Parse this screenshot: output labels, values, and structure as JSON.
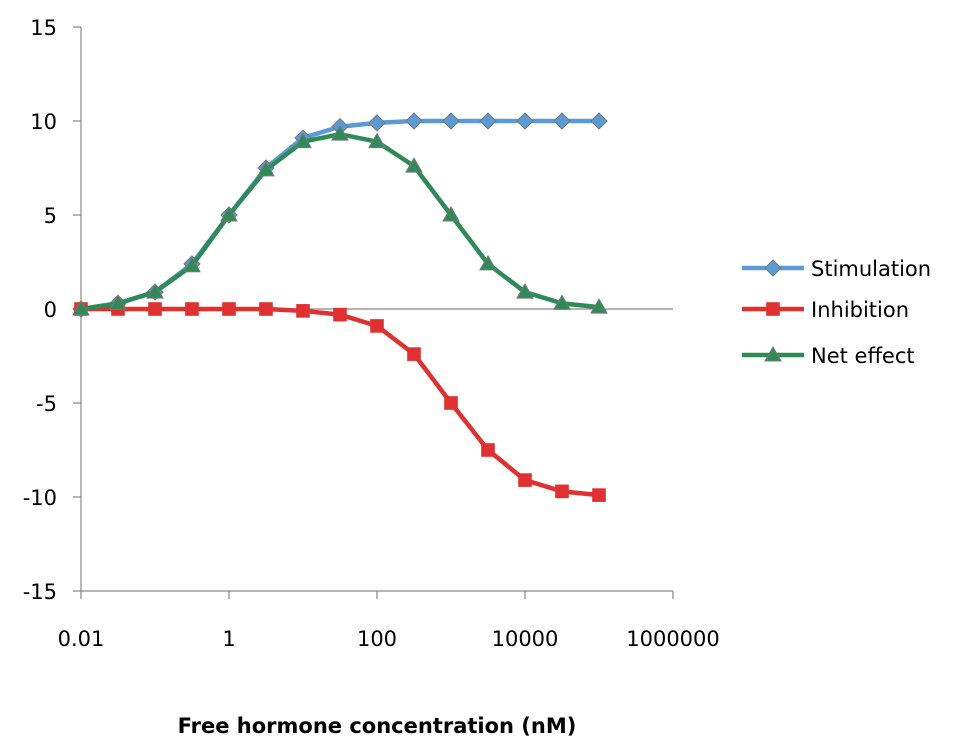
{
  "chart_data": {
    "type": "line",
    "title": "",
    "xlabel": "Free hormone concentration (nM)",
    "ylabel": "",
    "xscale": "log",
    "xlim": [
      0.01,
      1000000
    ],
    "ylim": [
      -15,
      15
    ],
    "x_ticks": [
      0.01,
      1,
      100,
      10000,
      1000000
    ],
    "x_tick_labels": [
      "0.01",
      "1",
      "100",
      "10000",
      "1000000"
    ],
    "y_ticks": [
      15,
      10,
      5,
      0,
      -5,
      -10,
      -15
    ],
    "y_tick_labels": [
      "15",
      "10",
      "5",
      "0",
      "-5",
      "-10",
      "-15"
    ],
    "grid": false,
    "legend_position": "right",
    "x": [
      0.01,
      0.0316,
      0.1,
      0.316,
      1,
      3.16,
      10,
      31.6,
      100,
      316,
      1000,
      3160,
      10000,
      31600,
      100000
    ],
    "series": [
      {
        "name": "Stimulation",
        "color": "#5b9bd5",
        "marker": "diamond",
        "values": [
          0.0,
          0.3,
          0.9,
          2.4,
          5.0,
          7.5,
          9.1,
          9.7,
          9.9,
          10.0,
          10.0,
          10.0,
          10.0,
          10.0,
          10.0
        ]
      },
      {
        "name": "Inhibition",
        "color": "#e03030",
        "marker": "square",
        "values": [
          0.0,
          0.0,
          0.0,
          0.0,
          0.0,
          0.0,
          -0.1,
          -0.3,
          -0.9,
          -2.4,
          -5.0,
          -7.5,
          -9.1,
          -9.7,
          -9.9
        ]
      },
      {
        "name": "Net effect",
        "color": "#2e8b57",
        "marker": "triangle",
        "values": [
          0.0,
          0.3,
          0.9,
          2.3,
          5.0,
          7.4,
          8.9,
          9.3,
          8.9,
          7.6,
          5.0,
          2.4,
          0.9,
          0.3,
          0.1
        ]
      }
    ]
  }
}
